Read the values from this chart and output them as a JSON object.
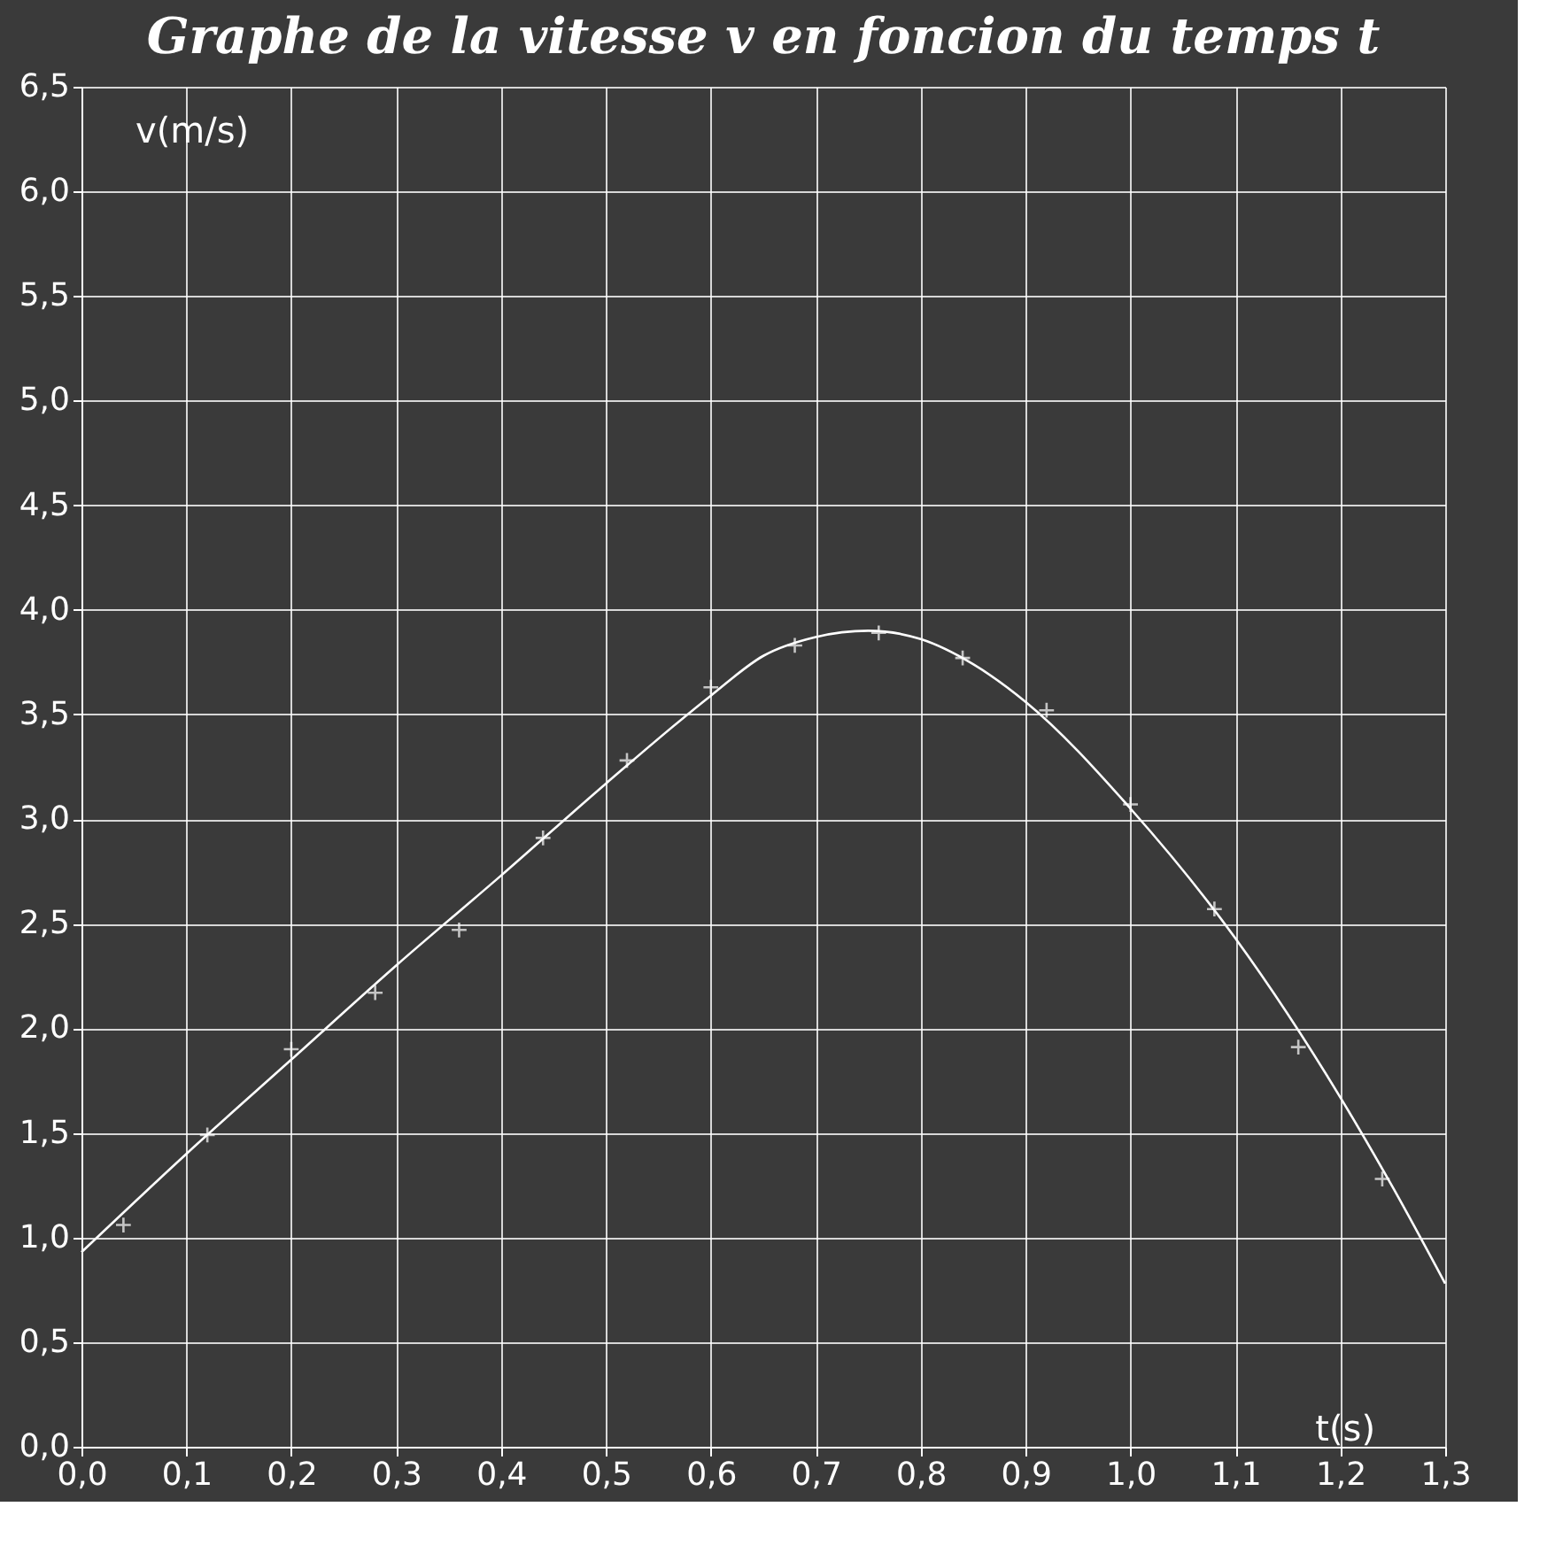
{
  "chart_data": {
    "type": "scatter",
    "title": "Graphe de la vitesse v en foncion du temps t",
    "xlabel": "t(s)",
    "ylabel": "v(m/s)",
    "xlim": [
      0,
      1.3
    ],
    "ylim": [
      0,
      6.5
    ],
    "xticks": [
      {
        "value": 0,
        "label": "0,0"
      },
      {
        "value": 0.1,
        "label": "0,1"
      },
      {
        "value": 0.2,
        "label": "0,2"
      },
      {
        "value": 0.3,
        "label": "0,3"
      },
      {
        "value": 0.4,
        "label": "0,4"
      },
      {
        "value": 0.5,
        "label": "0,5"
      },
      {
        "value": 0.6,
        "label": "0,6"
      },
      {
        "value": 0.7,
        "label": "0,7"
      },
      {
        "value": 0.8,
        "label": "0,8"
      },
      {
        "value": 0.9,
        "label": "0,9"
      },
      {
        "value": 1.0,
        "label": "1,0"
      },
      {
        "value": 1.1,
        "label": "1,1"
      },
      {
        "value": 1.2,
        "label": "1,2"
      },
      {
        "value": 1.3,
        "label": "1,3"
      }
    ],
    "yticks": [
      {
        "value": 0,
        "label": "0,0"
      },
      {
        "value": 0.5,
        "label": "0,5"
      },
      {
        "value": 1.0,
        "label": "1,0"
      },
      {
        "value": 1.5,
        "label": "1,5"
      },
      {
        "value": 2.0,
        "label": "2,0"
      },
      {
        "value": 2.5,
        "label": "2,5"
      },
      {
        "value": 3.0,
        "label": "3,0"
      },
      {
        "value": 3.5,
        "label": "3,5"
      },
      {
        "value": 4.0,
        "label": "4,0"
      },
      {
        "value": 4.5,
        "label": "4,5"
      },
      {
        "value": 5.0,
        "label": "5,0"
      },
      {
        "value": 5.5,
        "label": "5,5"
      },
      {
        "value": 6.0,
        "label": "6,0"
      },
      {
        "value": 6.5,
        "label": "6,5"
      }
    ],
    "grid": true,
    "series": [
      {
        "type": "scatter",
        "marker": "cross",
        "color": "#ffffff",
        "x": [
          0.04,
          0.12,
          0.2,
          0.28,
          0.36,
          0.44,
          0.52,
          0.6,
          0.68,
          0.76,
          0.84,
          0.92,
          1.0,
          1.08,
          1.16,
          1.24
        ],
        "values": [
          1.06,
          1.49,
          1.9,
          2.17,
          2.47,
          2.91,
          3.28,
          3.63,
          3.83,
          3.89,
          3.77,
          3.52,
          3.07,
          2.57,
          1.91,
          1.28
        ]
      },
      {
        "type": "line",
        "marker": "none",
        "line_style": "solid",
        "color": "#ffffff",
        "x": [
          0,
          0.1,
          0.2,
          0.3,
          0.4,
          0.5,
          0.6,
          0.65,
          0.7,
          0.75,
          0.8,
          0.85,
          0.9,
          1.0,
          1.1,
          1.2,
          1.25,
          1.3
        ],
        "values": [
          0.93,
          1.4,
          1.85,
          2.3,
          2.73,
          3.17,
          3.59,
          3.78,
          3.87,
          3.9,
          3.86,
          3.74,
          3.56,
          3.05,
          2.43,
          1.67,
          1.24,
          0.78
        ]
      }
    ]
  }
}
